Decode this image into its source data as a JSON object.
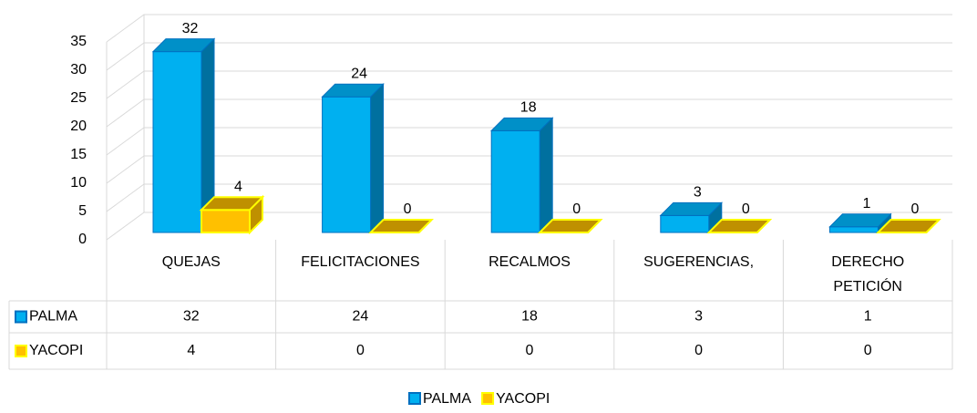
{
  "chart_data": {
    "type": "bar3d",
    "categories": [
      "QUEJAS",
      "FELICITACIONES",
      "RECALMOS",
      "SUGERENCIAS,",
      "DERECHO PETICIÓN"
    ],
    "series": [
      {
        "name": "PALMA",
        "color": "#00b0f0",
        "values": [
          32,
          24,
          18,
          3,
          1
        ]
      },
      {
        "name": "YACOPI",
        "color": "#ffc000",
        "values": [
          4,
          0,
          0,
          0,
          0
        ]
      }
    ],
    "ylim": [
      0,
      35
    ],
    "yticks": [
      0,
      5,
      10,
      15,
      20,
      25,
      30,
      35
    ],
    "grid": true,
    "legend": "bottom",
    "data_table": true
  }
}
